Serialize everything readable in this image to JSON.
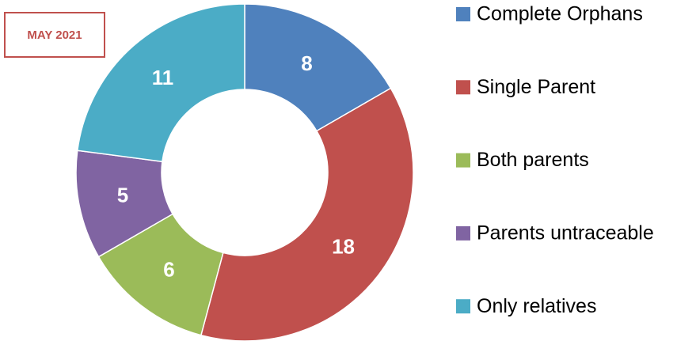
{
  "chart_data": {
    "type": "donut",
    "title": "MAY 2021",
    "categories": [
      "Complete Orphans",
      "Single Parent",
      "Both parents",
      "Parents untraceable",
      "Only relatives"
    ],
    "values": [
      8,
      18,
      6,
      5,
      11
    ],
    "colors": [
      "#4f81bd",
      "#c0504d",
      "#9bbb59",
      "#8064a2",
      "#4bacc6"
    ],
    "legend": "right"
  }
}
